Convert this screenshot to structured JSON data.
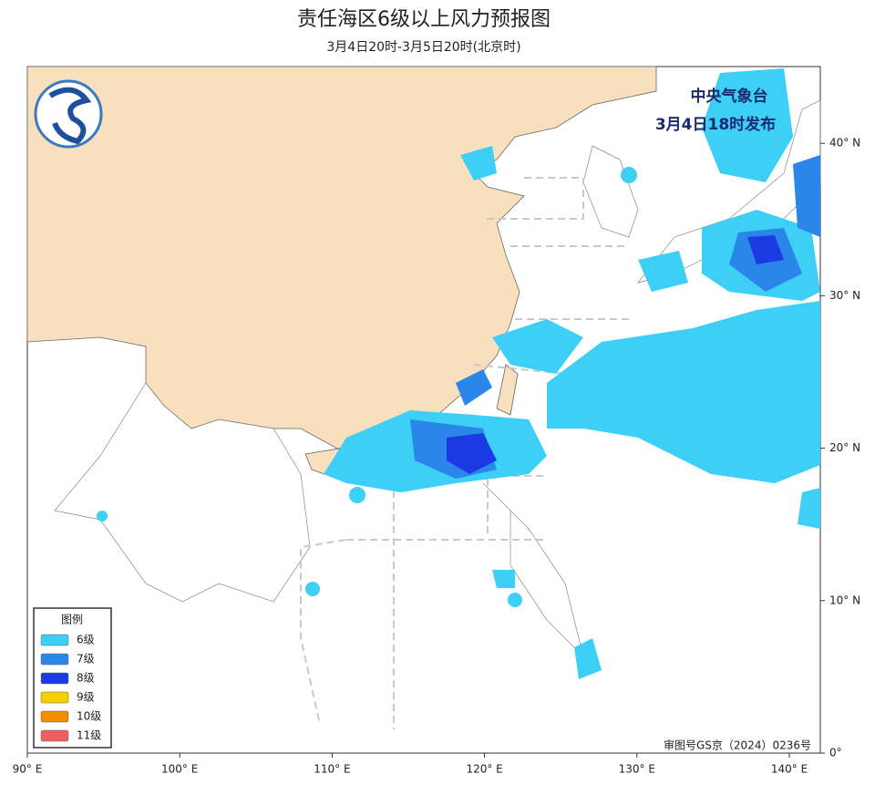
{
  "header": {
    "title": "责任海区6级以上风力预报图",
    "subtitle": "3月4日20时-3月5日20时(北京时)"
  },
  "publisher": {
    "org": "中央气象台",
    "issued": "3月4日18时发布"
  },
  "approval": "审图号GS京（2024）0236号",
  "axes": {
    "lon_range": [
      90,
      142
    ],
    "lat_range": [
      0,
      45
    ],
    "x_ticks": [
      {
        "value": 90,
        "label": "90° E"
      },
      {
        "value": 100,
        "label": "100° E"
      },
      {
        "value": 110,
        "label": "110° E"
      },
      {
        "value": 120,
        "label": "120° E"
      },
      {
        "value": 130,
        "label": "130° E"
      },
      {
        "value": 140,
        "label": "140° E"
      }
    ],
    "y_ticks": [
      {
        "value": 0,
        "label": "0°"
      },
      {
        "value": 10,
        "label": "10° N"
      },
      {
        "value": 20,
        "label": "20° N"
      },
      {
        "value": 30,
        "label": "30° N"
      },
      {
        "value": 40,
        "label": "40° N"
      }
    ]
  },
  "legend": {
    "title": "图例",
    "items": [
      {
        "label": "6级",
        "color": "#3dcff6"
      },
      {
        "label": "7级",
        "color": "#2a86e8"
      },
      {
        "label": "8级",
        "color": "#1b3ae4"
      },
      {
        "label": "9级",
        "color": "#f4d000"
      },
      {
        "label": "10级",
        "color": "#f58c00"
      },
      {
        "label": "11级",
        "color": "#ef5f5f"
      }
    ]
  }
}
